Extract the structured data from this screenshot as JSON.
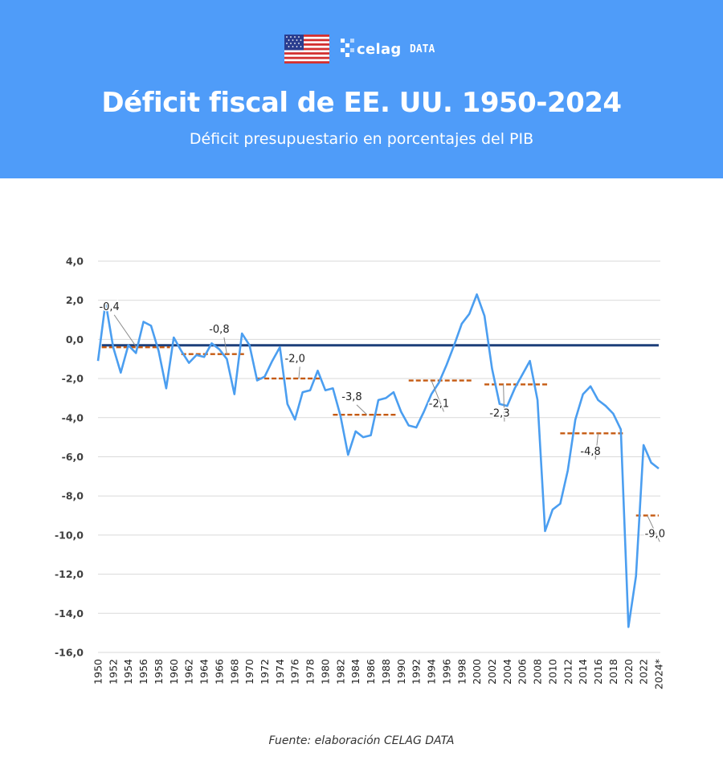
{
  "header": {
    "title": "Déficit fiscal de EE. UU. 1950-2024",
    "subtitle": "Déficit presupuestario en porcentajes del PIB",
    "brand_name": "celag",
    "brand_suffix": "DATA",
    "header_color": "#4f9cf9",
    "flag_icon": "us-flag-icon"
  },
  "footer": {
    "source": "Fuente: elaboración CELAG DATA"
  },
  "chart_data": {
    "type": "line",
    "ylim": [
      -16,
      4
    ],
    "yticks": [
      "4,0",
      "2,0",
      "0,0",
      "-2,0",
      "-4,0",
      "-6,0",
      "-8,0",
      "-10,0",
      "-12,0",
      "-14,0",
      "-16,0"
    ],
    "ytick_values": [
      4,
      2,
      0,
      -2,
      -4,
      -6,
      -8,
      -10,
      -12,
      -14,
      -16
    ],
    "xtick_labels": [
      "1950",
      "1952",
      "1954",
      "1956",
      "1958",
      "1960",
      "1962",
      "1964",
      "1966",
      "1968",
      "1970",
      "1972",
      "1974",
      "1976",
      "1978",
      "1980",
      "1982",
      "1984",
      "1986",
      "1988",
      "1990",
      "1992",
      "1994",
      "1996",
      "1998",
      "2000",
      "2002",
      "2004",
      "2006",
      "2008",
      "2010",
      "2012",
      "2014",
      "2016",
      "2018",
      "2020",
      "2022",
      "2024*"
    ],
    "grid": true,
    "line_color": "#4b9ef0",
    "series": [
      {
        "x": [
          1950,
          1951,
          1952,
          1953,
          1954,
          1955,
          1956,
          1957,
          1958,
          1959,
          1960,
          1961,
          1962,
          1963,
          1964,
          1965,
          1966,
          1967,
          1968,
          1969,
          1970,
          1971,
          1972,
          1973,
          1974,
          1975,
          1976,
          1977,
          1978,
          1979,
          1980,
          1981,
          1982,
          1983,
          1984,
          1985,
          1986,
          1987,
          1988,
          1989,
          1990,
          1991,
          1992,
          1993,
          1994,
          1995,
          1996,
          1997,
          1998,
          1999,
          2000,
          2001,
          2002,
          2003,
          2004,
          2005,
          2006,
          2007,
          2008,
          2009,
          2010,
          2011,
          2012,
          2013,
          2014,
          2015,
          2016,
          2017,
          2018,
          2019,
          2020,
          2021,
          2022,
          2023,
          2024
        ],
        "values": [
          -1.1,
          1.9,
          -0.4,
          -1.7,
          -0.3,
          -0.7,
          0.9,
          0.7,
          -0.6,
          -2.5,
          0.1,
          -0.6,
          -1.2,
          -0.8,
          -0.9,
          -0.2,
          -0.5,
          -1.0,
          -2.8,
          0.3,
          -0.3,
          -2.1,
          -1.9,
          -1.1,
          -0.4,
          -3.3,
          -4.1,
          -2.7,
          -2.6,
          -1.6,
          -2.6,
          -2.5,
          -3.9,
          -5.9,
          -4.7,
          -5.0,
          -4.9,
          -3.1,
          -3.0,
          -2.7,
          -3.7,
          -4.4,
          -4.5,
          -3.7,
          -2.8,
          -2.2,
          -1.3,
          -0.3,
          0.8,
          1.3,
          2.3,
          1.2,
          -1.5,
          -3.3,
          -3.4,
          -2.5,
          -1.8,
          -1.1,
          -3.1,
          -9.8,
          -8.7,
          -8.4,
          -6.7,
          -4.1,
          -2.8,
          -2.4,
          -3.1,
          -3.4,
          -3.8,
          -4.6,
          -14.7,
          -12.1,
          -5.4,
          -6.3,
          -6.6
        ]
      }
    ],
    "reference_line": {
      "value": -0.3,
      "x_from": 1950.5,
      "x_to": 2024,
      "color": "#1d3f7a"
    },
    "period_averages": [
      {
        "label": "-0,4",
        "value": -0.4,
        "x_from": 1950.5,
        "x_to": 1959.5,
        "label_x": 1951.5,
        "label_y": 1.5,
        "leader_x": 1955.0,
        "leader_y": -0.35
      },
      {
        "label": "-0,8",
        "value": -0.75,
        "x_from": 1961.0,
        "x_to": 1969.5,
        "label_x": 1966.0,
        "label_y": 0.35,
        "leader_x": 1967.0,
        "leader_y": -0.75
      },
      {
        "label": "-2,0",
        "value": -2.0,
        "x_from": 1971.0,
        "x_to": 1979.5,
        "label_x": 1976.0,
        "label_y": -1.15,
        "leader_x": 1976.5,
        "leader_y": -2.0
      },
      {
        "label": "-3,8",
        "value": -3.85,
        "x_from": 1981.0,
        "x_to": 1989.5,
        "label_x": 1983.5,
        "label_y": -3.1,
        "leader_x": 1985.5,
        "leader_y": -3.85
      },
      {
        "label": "-2,1",
        "value": -2.1,
        "x_from": 1991.0,
        "x_to": 1999.5,
        "label_x": 1995.0,
        "label_y": -3.45,
        "leader_x": 1994.0,
        "leader_y": -2.1
      },
      {
        "label": "-2,3",
        "value": -2.3,
        "x_from": 2001.0,
        "x_to": 2009.5,
        "label_x": 2003.0,
        "label_y": -3.95,
        "leader_x": 2003.5,
        "leader_y": -2.3
      },
      {
        "label": "-4,8",
        "value": -4.8,
        "x_from": 2011.0,
        "x_to": 2019.5,
        "label_x": 2015.0,
        "label_y": -5.9,
        "leader_x": 2016.0,
        "leader_y": -4.8
      },
      {
        "label": "-9,0",
        "value": -9.0,
        "x_from": 2021.0,
        "x_to": 2024.0,
        "label_x": 2023.5,
        "label_y": -10.1,
        "leader_x": 2022.5,
        "leader_y": -9.0
      }
    ],
    "avg_line_color": "#c55a11"
  }
}
